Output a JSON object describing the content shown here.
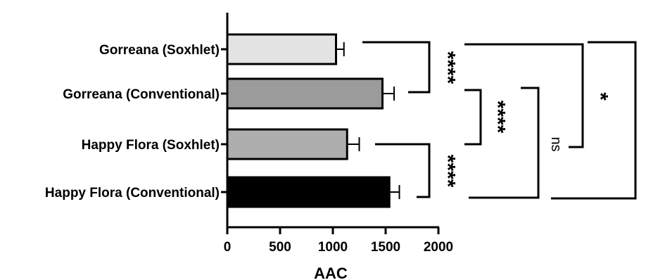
{
  "chart_data": {
    "type": "bar",
    "orientation": "horizontal",
    "categories": [
      "Gorreana (Soxhlet)",
      "Gorreana (Conventional)",
      "Happy Flora (Soxhlet)",
      "Happy Flora (Conventional)"
    ],
    "values": [
      1030,
      1470,
      1135,
      1535
    ],
    "errors": [
      75,
      110,
      115,
      95
    ],
    "bar_colors": [
      "#e3e3e3",
      "#9b9b9b",
      "#aeaeae",
      "#000000"
    ],
    "xlabel": "AAC",
    "xlim": [
      0,
      2000
    ],
    "xticks": [
      "0",
      "500",
      "1000",
      "1500",
      "2000"
    ],
    "grid": false,
    "significance": [
      {
        "pair": [
          "Gorreana (Soxhlet)",
          "Gorreana (Conventional)"
        ],
        "label": "****"
      },
      {
        "pair": [
          "Gorreana (Conventional)",
          "Happy Flora (Soxhlet)"
        ],
        "label": "****"
      },
      {
        "pair": [
          "Happy Flora (Soxhlet)",
          "Happy Flora (Conventional)"
        ],
        "label": "****"
      },
      {
        "pair": [
          "Gorreana (Conventional)",
          "Happy Flora (Conventional)"
        ],
        "label": "ns"
      },
      {
        "pair": [
          "Gorreana (Soxhlet)",
          "Happy Flora (Soxhlet)"
        ],
        "label": "*"
      },
      {
        "pair": [
          "Gorreana (Soxhlet)",
          "Happy Flora (Conventional)"
        ],
        "label": "****"
      }
    ]
  }
}
